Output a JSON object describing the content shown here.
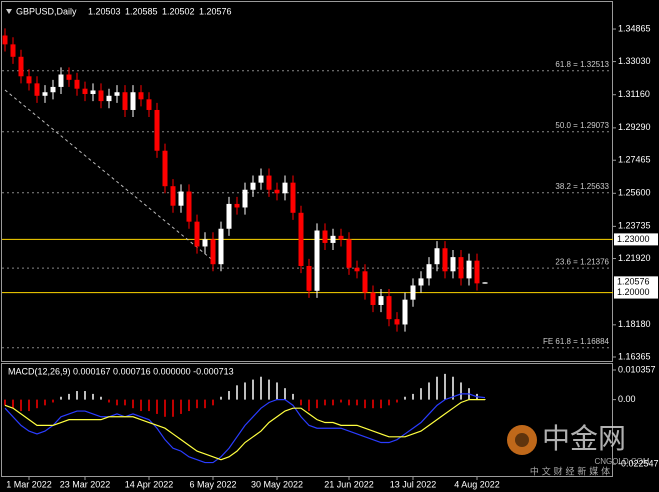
{
  "chart_data": [
    {
      "type": "candlestick",
      "title": "GBPUSD,Daily",
      "last_bar": {
        "open": 1.20503,
        "high": 1.20585,
        "low": 1.20502,
        "close": 1.20576
      },
      "categories": [
        null,
        null,
        null,
        "1 Mar 2022",
        null,
        null,
        null,
        null,
        null,
        null,
        "23 Mar 2022",
        null,
        null,
        null,
        null,
        null,
        null,
        null,
        "14 Apr 2022",
        null,
        null,
        null,
        null,
        null,
        null,
        null,
        "6 May 2022",
        null,
        null,
        null,
        null,
        null,
        null,
        null,
        "30 May 2022",
        null,
        null,
        null,
        null,
        null,
        null,
        null,
        null,
        "21 Jun 2022",
        null,
        null,
        null,
        null,
        null,
        null,
        null,
        "13 Jul 2022",
        null,
        null,
        null,
        null,
        null,
        null,
        null,
        "4 Aug 2022",
        null
      ],
      "open": [
        1.345,
        1.34,
        1.333,
        1.322,
        1.318,
        1.311,
        1.313,
        1.316,
        1.323,
        1.32,
        1.315,
        1.312,
        1.314,
        1.308,
        1.311,
        1.313,
        1.303,
        1.313,
        1.309,
        1.303,
        1.28,
        1.26,
        1.249,
        1.257,
        1.24,
        1.226,
        1.23,
        1.216,
        1.236,
        1.25,
        1.248,
        1.258,
        1.262,
        1.266,
        1.258,
        1.256,
        1.262,
        1.245,
        1.215,
        1.201,
        1.235,
        1.228,
        1.232,
        1.23,
        1.214,
        1.212,
        1.2,
        1.193,
        1.198,
        1.185,
        1.182,
        1.196,
        1.204,
        1.208,
        1.216,
        1.225,
        1.212,
        1.22,
        1.208,
        1.218,
        1.20503
      ],
      "high": [
        1.349,
        1.344,
        1.337,
        1.326,
        1.322,
        1.317,
        1.32,
        1.327,
        1.327,
        1.324,
        1.319,
        1.318,
        1.318,
        1.315,
        1.317,
        1.317,
        1.317,
        1.317,
        1.313,
        1.307,
        1.284,
        1.264,
        1.261,
        1.261,
        1.244,
        1.234,
        1.234,
        1.24,
        1.254,
        1.254,
        1.262,
        1.266,
        1.27,
        1.27,
        1.262,
        1.266,
        1.266,
        1.249,
        1.219,
        1.239,
        1.239,
        1.236,
        1.236,
        1.234,
        1.218,
        1.216,
        1.204,
        1.202,
        1.202,
        1.189,
        1.2,
        1.208,
        1.212,
        1.22,
        1.229,
        1.229,
        1.224,
        1.224,
        1.222,
        1.222,
        1.20585
      ],
      "low": [
        1.336,
        1.329,
        1.318,
        1.314,
        1.307,
        1.307,
        1.309,
        1.312,
        1.316,
        1.311,
        1.308,
        1.308,
        1.304,
        1.304,
        1.307,
        1.299,
        1.299,
        1.305,
        1.299,
        1.276,
        1.256,
        1.245,
        1.245,
        1.236,
        1.222,
        1.222,
        1.212,
        1.212,
        1.232,
        1.244,
        1.244,
        1.254,
        1.258,
        1.254,
        1.252,
        1.252,
        1.241,
        1.211,
        1.197,
        1.197,
        1.224,
        1.224,
        1.226,
        1.21,
        1.208,
        1.196,
        1.189,
        1.189,
        1.181,
        1.178,
        1.178,
        1.192,
        1.2,
        1.204,
        1.212,
        1.208,
        1.208,
        1.204,
        1.204,
        1.2012,
        1.20502
      ],
      "close": [
        1.34,
        1.333,
        1.322,
        1.318,
        1.311,
        1.313,
        1.316,
        1.323,
        1.32,
        1.315,
        1.312,
        1.314,
        1.308,
        1.311,
        1.313,
        1.303,
        1.313,
        1.309,
        1.303,
        1.28,
        1.26,
        1.249,
        1.257,
        1.24,
        1.226,
        1.23,
        1.216,
        1.236,
        1.25,
        1.248,
        1.258,
        1.262,
        1.266,
        1.258,
        1.256,
        1.262,
        1.245,
        1.215,
        1.201,
        1.235,
        1.228,
        1.232,
        1.23,
        1.214,
        1.212,
        1.2,
        1.193,
        1.198,
        1.185,
        1.182,
        1.196,
        1.204,
        1.208,
        1.216,
        1.225,
        1.212,
        1.22,
        1.208,
        1.218,
        1.2052,
        1.20576
      ],
      "up_color": "#ffffff",
      "down_color": "#ff0000",
      "ylim": [
        1.1614,
        1.3639
      ],
      "yticks": [
        1.34865,
        {
          "value": 1.3303,
          "label": "1.33030"
        },
        {
          "value": 1.3116,
          "label": "1.31160"
        },
        {
          "value": 1.2929,
          "label": "1.29290"
        },
        1.27465,
        {
          "value": 1.256,
          "label": "1.25600"
        },
        1.23735,
        {
          "value": 1.2192,
          "label": "1.21920"
        },
        {
          "value": 1.1818,
          "label": "1.18180"
        },
        1.16365
      ],
      "levels": [
        {
          "value": 1.23,
          "label": "1.23000"
        },
        {
          "value": 1.2,
          "label": "1.20000"
        }
      ],
      "level_color": "#ffd700",
      "fib_levels": [
        {
          "value": 1.32513,
          "label": "61.8 = 1.32513"
        },
        {
          "value": 1.29073,
          "label": "50.0 = 1.29073"
        },
        {
          "value": 1.25633,
          "label": "38.2 = 1.25633"
        },
        {
          "value": 1.21376,
          "label": "23.6 = 1.21376"
        },
        {
          "value": 1.16884,
          "label": "FE 61.8 = 1.16884"
        }
      ]
    },
    {
      "type": "macd",
      "title": "MACD(12,26,9) 0.000167 0.000716 0.000000 -0.000713",
      "values": [
        -0.002,
        -0.003,
        -0.004,
        -0.004,
        -0.003,
        -0.002,
        -0.001,
        0.001,
        0.002,
        0.003,
        0.003,
        0.002,
        0.001,
        -0.001,
        -0.002,
        -0.002,
        -0.003,
        -0.004,
        -0.004,
        -0.005,
        -0.006,
        -0.006,
        -0.005,
        -0.004,
        -0.003,
        -0.003,
        -0.002,
        0.001,
        0.003,
        0.005,
        0.006,
        0.007,
        0.008,
        0.007,
        0.006,
        0.004,
        0.002,
        -0.002,
        -0.004,
        -0.003,
        -0.002,
        -0.002,
        -0.001,
        -0.002,
        -0.002,
        -0.003,
        -0.003,
        -0.003,
        -0.002,
        -0.001,
        0.001,
        0.002,
        0.004,
        0.006,
        0.008,
        0.009,
        0.008,
        0.006,
        0.004,
        0.002,
        0.0002
      ],
      "up_color": "#ffffff",
      "down_color": "#ff0000",
      "series": [
        {
          "color": "#2a3cff",
          "values": [
            -0.003,
            -0.006,
            -0.009,
            -0.011,
            -0.012,
            -0.011,
            -0.009,
            -0.006,
            -0.005,
            -0.004,
            -0.004,
            -0.005,
            -0.006,
            -0.006,
            -0.005,
            -0.006,
            -0.005,
            -0.006,
            -0.007,
            -0.01,
            -0.014,
            -0.017,
            -0.018,
            -0.02,
            -0.021,
            -0.022,
            -0.022,
            -0.02,
            -0.017,
            -0.013,
            -0.009,
            -0.006,
            -0.003,
            -0.001,
            0,
            0,
            -0.002,
            -0.006,
            -0.009,
            -0.01,
            -0.01,
            -0.01,
            -0.01,
            -0.011,
            -0.012,
            -0.013,
            -0.014,
            -0.015,
            -0.015,
            -0.014,
            -0.012,
            -0.01,
            -0.008,
            -0.005,
            -0.002,
            0,
            0.001,
            0.002,
            0.002,
            0.001,
            0.0007
          ]
        },
        {
          "color": "#ffff40",
          "values": [
            -0.002,
            -0.003,
            -0.005,
            -0.007,
            -0.009,
            -0.009,
            -0.009,
            -0.008,
            -0.007,
            -0.007,
            -0.007,
            -0.007,
            -0.007,
            -0.006,
            -0.006,
            -0.006,
            -0.006,
            -0.007,
            -0.008,
            -0.009,
            -0.01,
            -0.012,
            -0.014,
            -0.016,
            -0.018,
            -0.019,
            -0.02,
            -0.021,
            -0.02,
            -0.018,
            -0.015,
            -0.013,
            -0.011,
            -0.008,
            -0.006,
            -0.004,
            -0.003,
            -0.003,
            -0.005,
            -0.007,
            -0.008,
            -0.008,
            -0.009,
            -0.009,
            -0.009,
            -0.01,
            -0.011,
            -0.012,
            -0.013,
            -0.013,
            -0.013,
            -0.012,
            -0.011,
            -0.009,
            -0.007,
            -0.005,
            -0.003,
            -0.001,
            0,
            0,
            0
          ]
        }
      ],
      "ylim": [
        -0.0267,
        0.0121
      ],
      "yticks": [
        0.010357,
        {
          "value": 0,
          "label": "0.00"
        },
        -0.022547
      ]
    }
  ],
  "watermark": {
    "name": "中金网",
    "site": "CNGOLD.COM",
    "slogan": "中 文 财 经 新 媒 体"
  }
}
